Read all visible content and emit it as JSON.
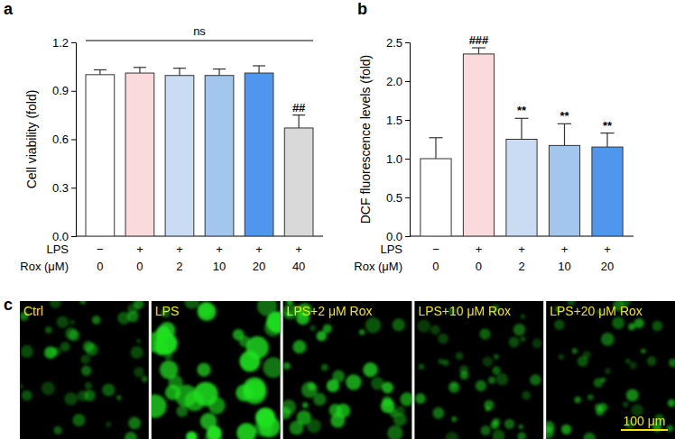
{
  "chart_data": [
    {
      "type": "bar",
      "panel": "a",
      "y_label": "Cell viability (fold)",
      "category_rows": [
        "LPS",
        "Rox (μM)"
      ],
      "categories": [
        [
          "−",
          "0"
        ],
        [
          "+",
          "0"
        ],
        [
          "+",
          "2"
        ],
        [
          "+",
          "10"
        ],
        [
          "+",
          "20"
        ],
        [
          "+",
          "40"
        ]
      ],
      "values": [
        1.0,
        1.01,
        0.995,
        0.995,
        1.01,
        0.67
      ],
      "errors": [
        0.03,
        0.035,
        0.045,
        0.04,
        0.045,
        0.08
      ],
      "colors": [
        "#ffffff",
        "#fadadd",
        "#c9dcf3",
        "#a3c6ef",
        "#4f97ee",
        "#d9d9d9"
      ],
      "ylim": [
        0,
        1.2
      ],
      "yticks": [
        {
          "value": 0,
          "label": "0.0"
        },
        {
          "value": 0.3,
          "label": "0.3"
        },
        {
          "value": 0.6,
          "label": "0.6"
        },
        {
          "value": 0.9,
          "label": "0.9"
        },
        {
          "value": 1.2,
          "label": "1.2"
        }
      ],
      "annotations": [
        {
          "text": "ns",
          "span": [
            0,
            5
          ]
        },
        {
          "text": "##",
          "category": 5
        }
      ]
    },
    {
      "type": "bar",
      "panel": "b",
      "y_label": "DCF fluorescence levels (fold)",
      "category_rows": [
        "LPS",
        "Rox (μM)"
      ],
      "categories": [
        [
          "−",
          "0"
        ],
        [
          "+",
          "0"
        ],
        [
          "+",
          "2"
        ],
        [
          "+",
          "10"
        ],
        [
          "+",
          "20"
        ]
      ],
      "values": [
        1.0,
        2.35,
        1.25,
        1.17,
        1.15
      ],
      "errors": [
        0.27,
        0.08,
        0.27,
        0.28,
        0.18
      ],
      "colors": [
        "#ffffff",
        "#fadadd",
        "#c9dcf3",
        "#a3c6ef",
        "#4f97ee"
      ],
      "ylim": [
        0,
        2.5
      ],
      "yticks": [
        {
          "value": 0,
          "label": "0.0"
        },
        {
          "value": 0.5,
          "label": "0.5"
        },
        {
          "value": 1,
          "label": "1.0"
        },
        {
          "value": 1.5,
          "label": "1.5"
        },
        {
          "value": 2,
          "label": "2.0"
        },
        {
          "value": 2.5,
          "label": "2.5"
        }
      ],
      "annotations": [
        {
          "text": "###",
          "category": 1
        },
        {
          "text": "**",
          "category": 2
        },
        {
          "text": "**",
          "category": 3
        },
        {
          "text": "**",
          "category": 4
        }
      ]
    }
  ],
  "images": {
    "panel": "c",
    "labels": [
      "Ctrl",
      "LPS",
      "LPS+2 μM Rox",
      "LPS+10 μM Rox",
      "LPS+20 μM Rox"
    ],
    "scale_bar": "100 μm"
  }
}
